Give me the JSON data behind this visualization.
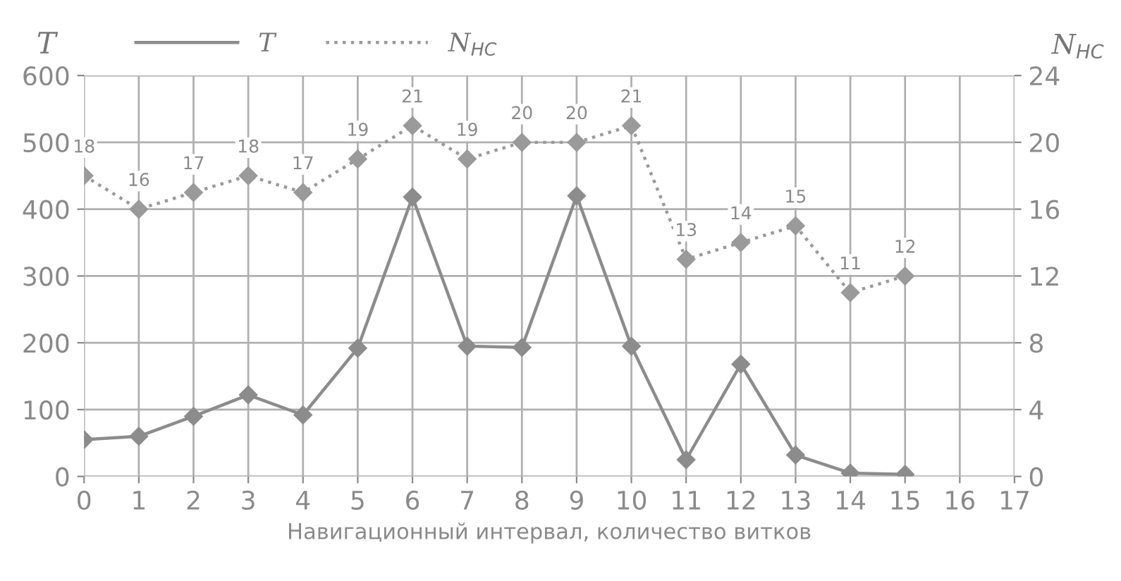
{
  "chart_data": {
    "type": "line",
    "xlabel": "Навигационный интервал, количество витков",
    "ylabel": "T",
    "y2label": "N$_{HC}$",
    "x": [
      0,
      1,
      2,
      3,
      4,
      5,
      6,
      7,
      8,
      9,
      10,
      11,
      12,
      13,
      14,
      15
    ],
    "series": [
      {
        "name": "T",
        "color": "#8c8c8c",
        "line_style": "solid",
        "values": [
          55,
          60,
          90,
          122,
          92,
          192,
          418,
          195,
          193,
          420,
          195,
          25,
          168,
          32,
          5,
          3
        ]
      },
      {
        "name": "N$_{HC}$",
        "color": "#9a9a9a",
        "line_style": "dotted",
        "axis": "y2",
        "values": [
          18,
          16,
          17,
          18,
          17,
          19,
          21,
          19,
          20,
          20,
          21,
          13,
          14,
          15,
          11,
          12
        ],
        "value_labels": [
          "18",
          "16",
          "17",
          "18",
          "17",
          "19",
          "21",
          "19",
          "20",
          "20",
          "21",
          "13",
          "14",
          "15",
          "11",
          "12"
        ]
      }
    ],
    "marker": "diamond",
    "grid": true,
    "legend": "top",
    "xlim": [
      0,
      17
    ],
    "xticks": [
      0,
      1,
      2,
      3,
      4,
      5,
      6,
      7,
      8,
      9,
      10,
      11,
      12,
      13,
      14,
      15,
      16,
      17
    ],
    "ylim": [
      0,
      600
    ],
    "yticks": [
      0,
      100,
      200,
      300,
      400,
      500,
      600
    ],
    "y2lim": [
      0,
      24
    ],
    "y2ticks": [
      0,
      4,
      8,
      12,
      16,
      20,
      24
    ]
  }
}
